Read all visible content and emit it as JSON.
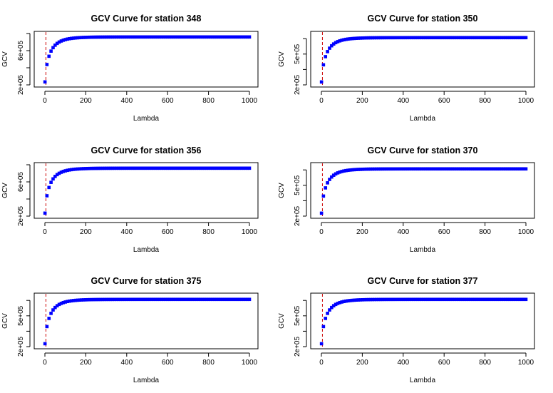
{
  "chart_data": [
    {
      "type": "scatter",
      "title": "GCV Curve for station 348",
      "xlabel": "Lambda",
      "ylabel": "GCV",
      "xlim": [
        0,
        1000
      ],
      "ylim": [
        200000,
        800000
      ],
      "x_ticks": [
        "0",
        "200",
        "400",
        "600",
        "800",
        "1000"
      ],
      "y_ticks": [
        {
          "value": 200000,
          "label": "2e+05"
        },
        {
          "value": 600000,
          "label": "6e+05"
        }
      ],
      "plateau": 760000,
      "min_lambda": 5,
      "series": [
        {
          "color": "#0000ff"
        }
      ],
      "vline_color": "#cc0000"
    },
    {
      "type": "scatter",
      "title": "GCV Curve for station 350",
      "xlabel": "Lambda",
      "ylabel": "GCV",
      "xlim": [
        0,
        1000
      ],
      "ylim": [
        200000,
        700000
      ],
      "x_ticks": [
        "0",
        "200",
        "400",
        "600",
        "800",
        "1000"
      ],
      "y_ticks": [
        {
          "value": 200000,
          "label": "2e+05"
        },
        {
          "value": 500000,
          "label": "5e+05"
        }
      ],
      "plateau": 660000,
      "min_lambda": 5,
      "series": [
        {
          "color": "#0000ff"
        }
      ],
      "vline_color": "#cc0000"
    },
    {
      "type": "scatter",
      "title": "GCV Curve for station 356",
      "xlabel": "Lambda",
      "ylabel": "GCV",
      "xlim": [
        0,
        1000
      ],
      "ylim": [
        200000,
        800000
      ],
      "x_ticks": [
        "0",
        "200",
        "400",
        "600",
        "800",
        "1000"
      ],
      "y_ticks": [
        {
          "value": 200000,
          "label": "2e+05"
        },
        {
          "value": 600000,
          "label": "6e+05"
        }
      ],
      "plateau": 760000,
      "min_lambda": 5,
      "series": [
        {
          "color": "#0000ff"
        }
      ],
      "vline_color": "#cc0000"
    },
    {
      "type": "scatter",
      "title": "GCV Curve for station 370",
      "xlabel": "Lambda",
      "ylabel": "GCV",
      "xlim": [
        0,
        1000
      ],
      "ylim": [
        200000,
        700000
      ],
      "x_ticks": [
        "0",
        "200",
        "400",
        "600",
        "800",
        "1000"
      ],
      "y_ticks": [
        {
          "value": 200000,
          "label": "2e+05"
        },
        {
          "value": 500000,
          "label": "5e+05"
        }
      ],
      "plateau": 660000,
      "min_lambda": 5,
      "series": [
        {
          "color": "#0000ff"
        }
      ],
      "vline_color": "#cc0000"
    },
    {
      "type": "scatter",
      "title": "GCV Curve for station 375",
      "xlabel": "Lambda",
      "ylabel": "GCV",
      "xlim": [
        0,
        1000
      ],
      "ylim": [
        200000,
        700000
      ],
      "x_ticks": [
        "0",
        "200",
        "400",
        "600",
        "800",
        "1000"
      ],
      "y_ticks": [
        {
          "value": 200000,
          "label": "2e+05"
        },
        {
          "value": 500000,
          "label": "5e+05"
        }
      ],
      "plateau": 660000,
      "min_lambda": 5,
      "series": [
        {
          "color": "#0000ff"
        }
      ],
      "vline_color": "#cc0000"
    },
    {
      "type": "scatter",
      "title": "GCV Curve for station 377",
      "xlabel": "Lambda",
      "ylabel": "GCV",
      "xlim": [
        0,
        1000
      ],
      "ylim": [
        200000,
        700000
      ],
      "x_ticks": [
        "0",
        "200",
        "400",
        "600",
        "800",
        "1000"
      ],
      "y_ticks": [
        {
          "value": 200000,
          "label": "2e+05"
        },
        {
          "value": 500000,
          "label": "5e+05"
        }
      ],
      "plateau": 660000,
      "min_lambda": 5,
      "series": [
        {
          "color": "#0000ff"
        }
      ],
      "vline_color": "#cc0000"
    }
  ]
}
